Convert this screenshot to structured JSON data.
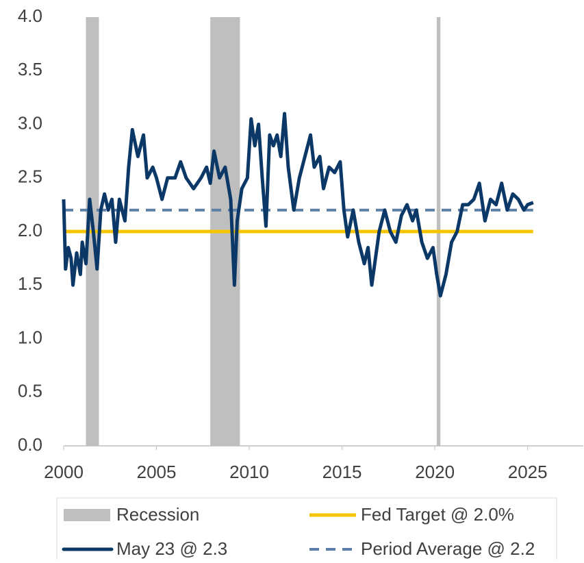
{
  "chart_data": {
    "type": "line",
    "xlim": [
      2000,
      2028
    ],
    "xticks": [
      2000,
      2005,
      2010,
      2015,
      2020,
      2025
    ],
    "ylim": [
      0,
      4
    ],
    "yticks": [
      {
        "value": 0,
        "label": "0.0"
      },
      {
        "value": 0.5,
        "label": "0.5"
      },
      {
        "value": 1,
        "label": "1.0"
      },
      {
        "value": 1.5,
        "label": "1.5"
      },
      {
        "value": 2,
        "label": "2.0"
      },
      {
        "value": 2.5,
        "label": "2.5"
      },
      {
        "value": 3,
        "label": "3.0"
      },
      {
        "value": 3.5,
        "label": "3.5"
      },
      {
        "value": 4,
        "label": "4.0"
      }
    ],
    "recession": {
      "name": "Recession",
      "color": "#bfbfbf",
      "periods": [
        [
          2001.2,
          2001.9
        ],
        [
          2007.9,
          2009.5
        ],
        [
          2020.1,
          2020.3
        ]
      ]
    },
    "fed_target": {
      "name": "Fed Target @ 2.0%",
      "color": "#f5c400",
      "value": 2.0
    },
    "period_average": {
      "name": "Period Average @ 2.2",
      "color": "#5b7fa6",
      "value": 2.2
    },
    "series": [
      {
        "name": "May 23 @ 2.3",
        "color": "#0b3866",
        "x": [
          2000.0,
          2000.1,
          2000.25,
          2000.4,
          2000.5,
          2000.7,
          2000.9,
          2001.0,
          2001.2,
          2001.4,
          2001.6,
          2001.8,
          2002.0,
          2002.2,
          2002.4,
          2002.6,
          2002.8,
          2003.0,
          2003.3,
          2003.5,
          2003.7,
          2004.0,
          2004.3,
          2004.5,
          2004.8,
          2005.0,
          2005.3,
          2005.6,
          2006.0,
          2006.3,
          2006.6,
          2007.0,
          2007.4,
          2007.7,
          2007.9,
          2008.1,
          2008.4,
          2008.7,
          2009.0,
          2009.2,
          2009.35,
          2009.6,
          2009.9,
          2010.1,
          2010.3,
          2010.5,
          2010.7,
          2010.9,
          2011.1,
          2011.3,
          2011.5,
          2011.7,
          2011.9,
          2012.1,
          2012.4,
          2012.7,
          2013.0,
          2013.3,
          2013.5,
          2013.8,
          2014.0,
          2014.3,
          2014.6,
          2014.9,
          2015.1,
          2015.3,
          2015.6,
          2015.9,
          2016.2,
          2016.4,
          2016.6,
          2016.8,
          2017.0,
          2017.3,
          2017.6,
          2017.9,
          2018.2,
          2018.5,
          2018.8,
          2019.0,
          2019.3,
          2019.6,
          2019.9,
          2020.1,
          2020.3,
          2020.6,
          2020.9,
          2021.2,
          2021.5,
          2021.8,
          2022.1,
          2022.4,
          2022.7,
          2023.0,
          2023.3,
          2023.6,
          2023.9,
          2024.2,
          2024.5,
          2024.8,
          2025.0,
          2025.3
        ],
        "values": [
          2.3,
          1.65,
          1.85,
          1.75,
          1.5,
          1.8,
          1.6,
          1.9,
          1.7,
          2.3,
          2.0,
          1.65,
          2.2,
          2.35,
          2.2,
          2.3,
          1.9,
          2.3,
          2.1,
          2.6,
          2.95,
          2.7,
          2.9,
          2.5,
          2.6,
          2.5,
          2.3,
          2.5,
          2.5,
          2.65,
          2.5,
          2.4,
          2.5,
          2.6,
          2.45,
          2.75,
          2.5,
          2.6,
          2.3,
          1.5,
          2.1,
          2.4,
          2.5,
          3.05,
          2.8,
          3.0,
          2.5,
          2.05,
          2.9,
          2.8,
          2.9,
          2.7,
          3.1,
          2.6,
          2.2,
          2.5,
          2.7,
          2.9,
          2.6,
          2.7,
          2.4,
          2.6,
          2.55,
          2.65,
          2.2,
          1.95,
          2.2,
          1.9,
          1.7,
          1.85,
          1.5,
          1.75,
          2.0,
          2.2,
          2.0,
          1.9,
          2.15,
          2.25,
          2.1,
          2.2,
          1.9,
          1.75,
          1.85,
          1.6,
          1.4,
          1.6,
          1.9,
          2.0,
          2.25,
          2.25,
          2.3,
          2.45,
          2.1,
          2.3,
          2.25,
          2.45,
          2.2,
          2.35,
          2.3,
          2.2,
          2.25,
          2.27
        ]
      }
    ]
  }
}
